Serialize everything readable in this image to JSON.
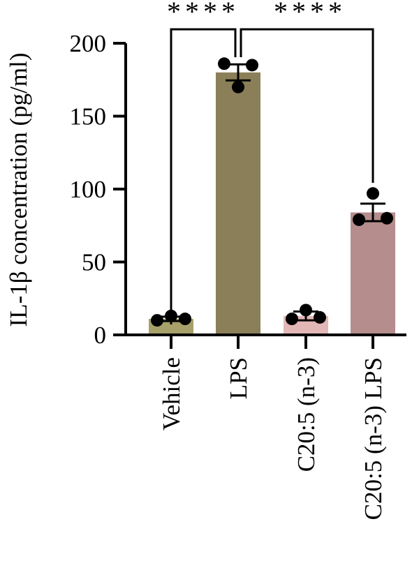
{
  "chart_data": {
    "type": "bar",
    "ylabel": "IL-1β concentration (pg/ml)",
    "ylim": [
      0,
      200
    ],
    "yticks": [
      0,
      50,
      100,
      150,
      200
    ],
    "categories": [
      "Vehicle",
      "LPS",
      "C20:5 (n-3)",
      "C20:5 (n-3) LPS"
    ],
    "values": [
      11,
      180,
      13,
      84
    ],
    "errors": [
      1.5,
      5.5,
      3,
      6
    ],
    "points": [
      [
        10,
        13,
        11
      ],
      [
        186,
        170,
        185
      ],
      [
        11,
        17,
        12
      ],
      [
        79,
        97,
        80
      ]
    ],
    "bar_colors": [
      "#a8a06a",
      "#8b7f59",
      "#e2b7b6",
      "#b48d8c"
    ],
    "significance": [
      {
        "from": 0,
        "to": 1,
        "label": "****"
      },
      {
        "from": 1,
        "to": 3,
        "label": "****"
      }
    ]
  }
}
